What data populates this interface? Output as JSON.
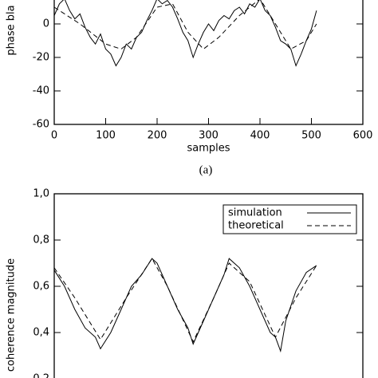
{
  "chart_data": [
    {
      "type": "line",
      "ylabel": "phase bla",
      "xlabel": "samples",
      "caption": "(a)",
      "xlim": [
        0,
        600
      ],
      "xticks": [
        0,
        100,
        200,
        300,
        400,
        500,
        600
      ],
      "ylim": [
        -60,
        20
      ],
      "yticks": [
        -60,
        -40,
        -20,
        0
      ],
      "series": [
        {
          "name": "simulation",
          "color": "#000000",
          "style": "solid",
          "x": [
            0,
            10,
            20,
            30,
            40,
            50,
            60,
            70,
            80,
            90,
            100,
            110,
            120,
            130,
            140,
            150,
            160,
            170,
            180,
            190,
            200,
            210,
            220,
            230,
            240,
            250,
            260,
            270,
            280,
            290,
            300,
            310,
            320,
            330,
            340,
            350,
            360,
            370,
            380,
            390,
            400,
            410,
            420,
            430,
            440,
            450,
            460,
            470,
            480,
            490,
            500,
            510
          ],
          "values": [
            5,
            12,
            15,
            8,
            3,
            6,
            -2,
            -8,
            -12,
            -6,
            -15,
            -18,
            -25,
            -20,
            -12,
            -15,
            -8,
            -5,
            2,
            8,
            15,
            12,
            14,
            10,
            3,
            -5,
            -10,
            -20,
            -12,
            -5,
            0,
            -4,
            2,
            5,
            3,
            8,
            10,
            6,
            12,
            10,
            15,
            8,
            5,
            -2,
            -10,
            -12,
            -15,
            -25,
            -18,
            -10,
            -3,
            8
          ]
        },
        {
          "name": "theoretical",
          "color": "#000000",
          "style": "dashed",
          "x": [
            0,
            50,
            100,
            130,
            160,
            200,
            230,
            260,
            290,
            320,
            360,
            400,
            430,
            460,
            490,
            510
          ],
          "values": [
            10,
            0,
            -12,
            -15,
            -8,
            10,
            12,
            -5,
            -15,
            -8,
            5,
            15,
            0,
            -15,
            -10,
            0
          ]
        }
      ]
    },
    {
      "type": "line",
      "ylabel": "coherence magnitude",
      "legend": "upper right",
      "xlim": [
        0,
        600
      ],
      "ylim": [
        0.2,
        1.0
      ],
      "yticks": [
        {
          "value": 0.2,
          "label": "0,2"
        },
        {
          "value": 0.4,
          "label": "0,4"
        },
        {
          "value": 0.6,
          "label": "0,6"
        },
        {
          "value": 0.8,
          "label": "0,8"
        },
        {
          "value": 1.0,
          "label": "1,0"
        }
      ],
      "series": [
        {
          "name": "simulation",
          "color": "#000000",
          "style": "solid",
          "x": [
            0,
            20,
            40,
            60,
            80,
            90,
            110,
            130,
            150,
            170,
            190,
            200,
            220,
            240,
            260,
            270,
            290,
            310,
            330,
            340,
            360,
            380,
            400,
            420,
            430,
            440,
            450,
            470,
            490,
            510
          ],
          "values": [
            0.67,
            0.6,
            0.5,
            0.42,
            0.38,
            0.33,
            0.4,
            0.5,
            0.6,
            0.65,
            0.72,
            0.7,
            0.6,
            0.5,
            0.42,
            0.35,
            0.45,
            0.55,
            0.65,
            0.72,
            0.68,
            0.6,
            0.5,
            0.4,
            0.38,
            0.32,
            0.45,
            0.58,
            0.66,
            0.69
          ]
        },
        {
          "name": "theoretical",
          "color": "#000000",
          "style": "dashed",
          "x": [
            0,
            40,
            90,
            140,
            190,
            220,
            270,
            310,
            340,
            380,
            430,
            470,
            510
          ],
          "values": [
            0.68,
            0.55,
            0.37,
            0.55,
            0.72,
            0.6,
            0.36,
            0.55,
            0.7,
            0.62,
            0.38,
            0.55,
            0.69
          ]
        }
      ]
    }
  ]
}
